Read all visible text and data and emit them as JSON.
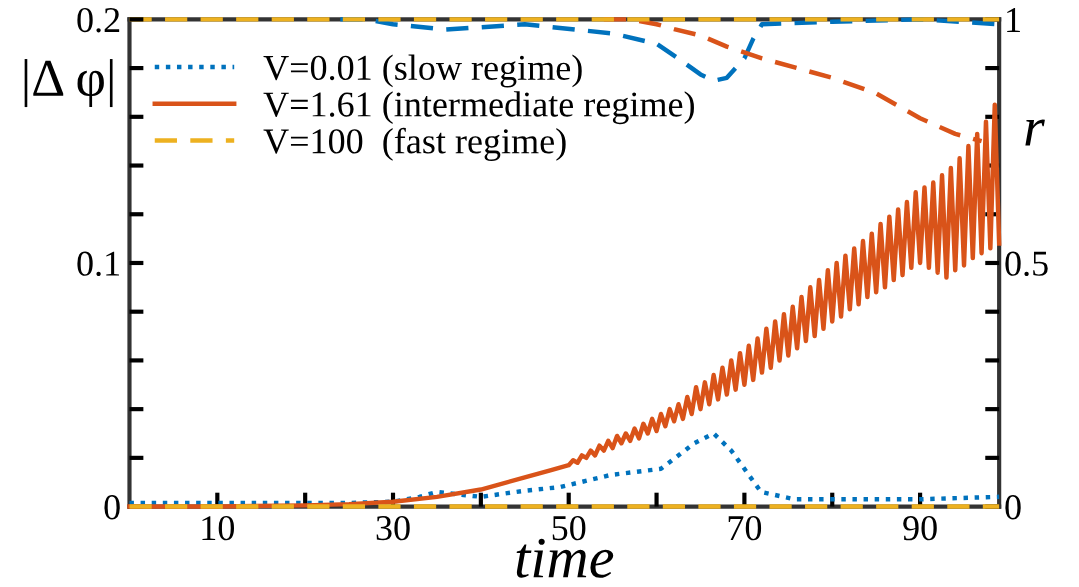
{
  "chart_data": {
    "type": "line",
    "xlabel": "time",
    "ylabel": "|Δ φ|",
    "y2label": "r",
    "legend": "top left",
    "grid": false,
    "xlim": [
      0,
      99
    ],
    "xticks": [
      10,
      {
        "value": 20,
        "label": null
      },
      30,
      {
        "value": 40,
        "label": null
      },
      50,
      {
        "value": 60,
        "label": null
      },
      70,
      {
        "value": 80,
        "label": null
      },
      90
    ],
    "ylim": [
      0,
      0.2
    ],
    "yticks": [
      0,
      {
        "value": 0.02,
        "label": null
      },
      {
        "value": 0.04,
        "label": null
      },
      {
        "value": 0.06,
        "label": null
      },
      {
        "value": 0.08,
        "label": null
      },
      0.1,
      {
        "value": 0.12,
        "label": null
      },
      {
        "value": 0.14,
        "label": null
      },
      {
        "value": 0.16,
        "label": null
      },
      {
        "value": 0.18,
        "label": null
      },
      0.2
    ],
    "y2lim": [
      0,
      1
    ],
    "y2ticks": [
      0,
      {
        "value": 0.1,
        "label": null
      },
      {
        "value": 0.2,
        "label": null
      },
      {
        "value": 0.3,
        "label": null
      },
      {
        "value": 0.4,
        "label": null
      },
      0.5,
      {
        "value": 0.6,
        "label": null
      },
      {
        "value": 0.7,
        "label": null
      },
      {
        "value": 0.8,
        "label": null
      },
      {
        "value": 0.9,
        "label": null
      },
      1
    ],
    "series": [
      {
        "name": "V=0.01 (slow regime)",
        "color": "#0072bd",
        "line_style": "dotted",
        "x": [
          0,
          10,
          20,
          25,
          30,
          33,
          35,
          40,
          45,
          49,
          54.8,
          60.5,
          64.3,
          66.5,
          68.5,
          70,
          71.9,
          75.7,
          80,
          90,
          99
        ],
        "values": [
          0.0015,
          0.0015,
          0.0015,
          0.0015,
          0.002,
          0.004,
          0.006,
          0.004,
          0.0065,
          0.008,
          0.013,
          0.0155,
          0.026,
          0.03,
          0.023,
          0.0155,
          0.006,
          0.003,
          0.003,
          0.003,
          0.004
        ]
      },
      {
        "name": "V=1.61 (intermediate regime)",
        "color": "#d95319",
        "line_style": "solid",
        "x": [
          0,
          10,
          20,
          25,
          30,
          35,
          40,
          45,
          48,
          50,
          50.5,
          51,
          51.5,
          52,
          52.5,
          53,
          53.5,
          54,
          54.5,
          55,
          55.5,
          56,
          56.5,
          57,
          57.5,
          58,
          58.5,
          59,
          59.5,
          60,
          60.5,
          61,
          61.5,
          62,
          62.5,
          63,
          63.5,
          64,
          64.5,
          65,
          65.5,
          66,
          66.5,
          67,
          67.5,
          68,
          68.5,
          69,
          69.5,
          70,
          70.5,
          71,
          71.5,
          72,
          72.5,
          73,
          73.5,
          74,
          74.5,
          75,
          75.5,
          76,
          76.5,
          77,
          77.5,
          78,
          78.5,
          79,
          79.5,
          80,
          80.5,
          81,
          81.5,
          82,
          82.5,
          83,
          83.5,
          84,
          84.5,
          85,
          85.5,
          86,
          86.5,
          87,
          87.5,
          88,
          88.5,
          89,
          89.5,
          90,
          90.5,
          91,
          91.5,
          92,
          92.5,
          93,
          93.5,
          94,
          94.5,
          95,
          95.5,
          96,
          96.5,
          97,
          97.5,
          98,
          98.5,
          99
        ],
        "values": [
          0,
          0,
          0.0005,
          0.001,
          0.002,
          0.004,
          0.007,
          0.012,
          0.015,
          0.017,
          0.019,
          0.018,
          0.021,
          0.02,
          0.023,
          0.021,
          0.025,
          0.023,
          0.027,
          0.024,
          0.029,
          0.026,
          0.03,
          0.027,
          0.032,
          0.028,
          0.034,
          0.03,
          0.036,
          0.031,
          0.038,
          0.033,
          0.04,
          0.035,
          0.042,
          0.036,
          0.045,
          0.038,
          0.049,
          0.04,
          0.051,
          0.042,
          0.054,
          0.044,
          0.057,
          0.046,
          0.06,
          0.048,
          0.063,
          0.05,
          0.066,
          0.052,
          0.069,
          0.055,
          0.073,
          0.057,
          0.076,
          0.06,
          0.079,
          0.062,
          0.082,
          0.065,
          0.086,
          0.068,
          0.09,
          0.07,
          0.093,
          0.073,
          0.097,
          0.076,
          0.1,
          0.078,
          0.103,
          0.081,
          0.106,
          0.083,
          0.109,
          0.086,
          0.112,
          0.088,
          0.116,
          0.09,
          0.119,
          0.093,
          0.122,
          0.095,
          0.125,
          0.098,
          0.129,
          0.1,
          0.131,
          0.098,
          0.133,
          0.096,
          0.136,
          0.094,
          0.139,
          0.097,
          0.143,
          0.099,
          0.148,
          0.102,
          0.153,
          0.104,
          0.158,
          0.106,
          0.165,
          0.108
        ]
      },
      {
        "name": "V=100  (fast regime)",
        "color": "#edb120",
        "line_style": "dashed",
        "x": [
          0,
          99
        ],
        "values": [
          0,
          0
        ]
      },
      {
        "axis": "y2",
        "color": "#0072bd",
        "line_style": "dashed",
        "x": [
          24,
          27,
          30,
          36,
          45,
          55,
          60,
          63,
          65,
          66.5,
          68,
          70,
          71,
          72,
          80,
          90,
          99
        ],
        "values": [
          1,
          1,
          0.99,
          0.979,
          0.99,
          0.971,
          0.95,
          0.913,
          0.887,
          0.874,
          0.88,
          0.92,
          0.96,
          0.99,
          0.995,
          1,
          0.99
        ]
      },
      {
        "axis": "y2",
        "color": "#d95319",
        "line_style": "dashed",
        "x": [
          54,
          57,
          60,
          62,
          65,
          68,
          72,
          76,
          80,
          85,
          90,
          94,
          97
        ],
        "values": [
          1,
          1,
          0.99,
          0.98,
          0.967,
          0.944,
          0.92,
          0.9,
          0.88,
          0.848,
          0.797,
          0.765,
          0.75
        ]
      },
      {
        "axis": "y2",
        "color": "#edb120",
        "line_style": "dashed",
        "x": [
          0,
          99
        ],
        "values": [
          1,
          1
        ]
      }
    ]
  }
}
